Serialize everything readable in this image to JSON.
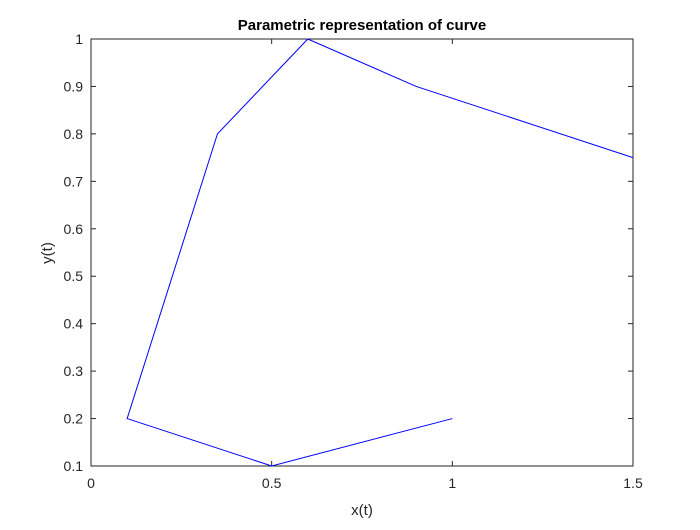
{
  "chart_data": {
    "type": "line",
    "title": "Parametric representation of curve",
    "xlabel": "x(t)",
    "ylabel": "y(t)",
    "xlim": [
      0,
      1.5
    ],
    "ylim": [
      0.1,
      1
    ],
    "xticks": [
      0,
      0.5,
      1,
      1.5
    ],
    "xtick_labels": [
      "0",
      "0.5",
      "1",
      "1.5"
    ],
    "yticks": [
      0.1,
      0.2,
      0.3,
      0.4,
      0.5,
      0.6,
      0.7,
      0.8,
      0.9,
      1
    ],
    "ytick_labels": [
      "0.1",
      "0.2",
      "0.3",
      "0.4",
      "0.5",
      "0.6",
      "0.7",
      "0.8",
      "0.9",
      "1"
    ],
    "grid": false,
    "box": true,
    "series": [
      {
        "color": "#0000ff",
        "points": [
          {
            "x": 1.0,
            "y": 0.2
          },
          {
            "x": 0.5,
            "y": 0.1
          },
          {
            "x": 0.1,
            "y": 0.2
          },
          {
            "x": 0.35,
            "y": 0.8
          },
          {
            "x": 0.6,
            "y": 1.0
          },
          {
            "x": 0.9,
            "y": 0.9
          },
          {
            "x": 1.5,
            "y": 0.75
          }
        ]
      }
    ]
  }
}
